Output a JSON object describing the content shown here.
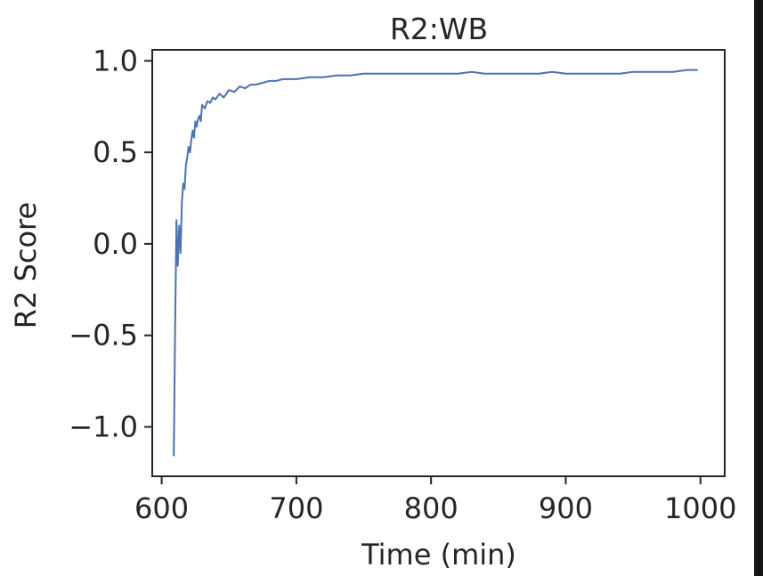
{
  "chart_data": {
    "type": "line",
    "title": "R2:WB",
    "xlabel": "Time (min)",
    "ylabel": "R2 Score",
    "xlim": [
      593,
      1018
    ],
    "ylim": [
      -1.27,
      1.06
    ],
    "xticks": [
      600,
      700,
      800,
      900,
      1000
    ],
    "xtick_labels": [
      "600",
      "700",
      "800",
      "900",
      "1000"
    ],
    "yticks": [
      1.0,
      0.5,
      0.0,
      -0.5,
      -1.0
    ],
    "ytick_labels": [
      "1.0",
      "0.5",
      "0.0",
      "−0.5",
      "−1.0"
    ],
    "grid": false,
    "series": [
      {
        "name": "R2:WB",
        "color": "#4c72b0",
        "x": [
          609,
          610,
          611,
          612,
          613,
          614,
          615,
          616,
          617,
          618,
          619,
          620,
          621,
          622,
          623,
          624,
          625,
          626,
          627,
          628,
          629,
          630,
          632,
          634,
          636,
          638,
          640,
          643,
          646,
          650,
          654,
          658,
          662,
          666,
          670,
          675,
          680,
          685,
          690,
          700,
          710,
          720,
          730,
          740,
          750,
          760,
          770,
          780,
          790,
          800,
          810,
          820,
          830,
          840,
          850,
          860,
          870,
          880,
          890,
          900,
          910,
          920,
          930,
          940,
          950,
          960,
          970,
          980,
          990,
          998
        ],
        "y": [
          -1.16,
          -0.45,
          0.13,
          -0.12,
          0.1,
          -0.05,
          0.23,
          0.33,
          0.3,
          0.43,
          0.47,
          0.53,
          0.5,
          0.57,
          0.62,
          0.58,
          0.67,
          0.64,
          0.68,
          0.7,
          0.67,
          0.76,
          0.74,
          0.78,
          0.77,
          0.8,
          0.79,
          0.82,
          0.8,
          0.84,
          0.83,
          0.86,
          0.85,
          0.87,
          0.87,
          0.88,
          0.89,
          0.89,
          0.9,
          0.9,
          0.91,
          0.91,
          0.92,
          0.92,
          0.93,
          0.93,
          0.93,
          0.93,
          0.93,
          0.93,
          0.93,
          0.93,
          0.94,
          0.93,
          0.93,
          0.93,
          0.93,
          0.93,
          0.94,
          0.93,
          0.93,
          0.93,
          0.93,
          0.93,
          0.94,
          0.94,
          0.94,
          0.94,
          0.95,
          0.95
        ]
      }
    ]
  }
}
